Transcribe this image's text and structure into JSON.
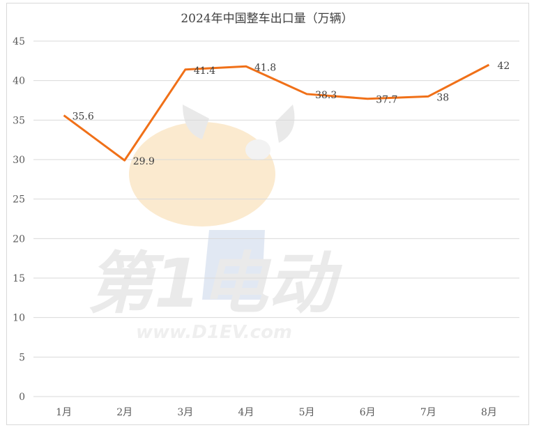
{
  "chart_data": {
    "type": "line",
    "title": "2024年中国整车出口量（万辆）",
    "categories": [
      "1月",
      "2月",
      "3月",
      "4月",
      "5月",
      "6月",
      "7月",
      "8月"
    ],
    "series": [
      {
        "values": [
          35.6,
          29.9,
          41.4,
          41.8,
          38.3,
          37.7,
          38,
          42
        ]
      }
    ],
    "data_labels": [
      "35.6",
      "29.9",
      "41.4",
      "41.8",
      "38.3",
      "37.7",
      "38",
      "42"
    ],
    "y_ticks": [
      "0",
      "5",
      "10",
      "15",
      "20",
      "25",
      "30",
      "35",
      "40",
      "45"
    ],
    "ylim": [
      0,
      45
    ],
    "xlabel": "",
    "ylabel": "",
    "grid": true,
    "legend": "none",
    "line_color": "#f07018",
    "grid_color": "#d9d9d9"
  },
  "watermark": {
    "text": "第1电动",
    "url": "www.D1EV.com"
  }
}
